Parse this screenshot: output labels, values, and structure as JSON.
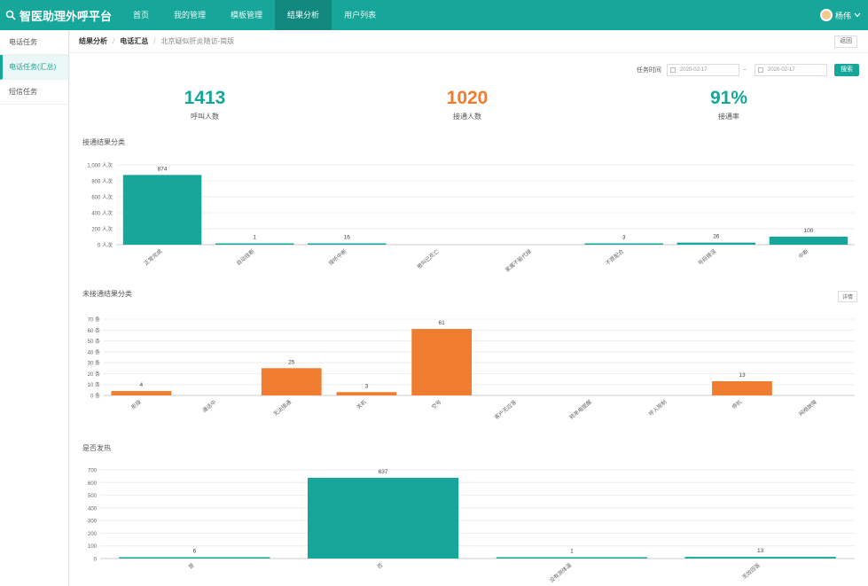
{
  "header": {
    "brand": "智医助理外呼平台",
    "nav": [
      "首页",
      "我的管理",
      "模板管理",
      "结果分析",
      "用户列表"
    ],
    "active_nav": 3,
    "user": "杨伟"
  },
  "sidebar": {
    "items": [
      "电话任务",
      "电话任务(汇总)",
      "短信任务"
    ],
    "active": 1
  },
  "breadcrumb": {
    "items": [
      "结果分析",
      "电话汇总",
      "北京疑似肝炎随访-简版"
    ],
    "back_label": "返回"
  },
  "filter": {
    "label": "任务时间",
    "start": "2020-02-17",
    "end": "2020-02-17",
    "query_label": "搜索"
  },
  "stats": [
    {
      "value": "1413",
      "label": "呼叫人数",
      "color": "#16a69a"
    },
    {
      "value": "1020",
      "label": "接通人数",
      "color": "#f07c2f"
    },
    {
      "value": "91%",
      "label": "接通率",
      "color": "#16a69a"
    }
  ],
  "sections": {
    "chart1_title": "接通结果分类",
    "chart2_title": "未接通结果分类",
    "chart3_title": "是否发热",
    "detail_label": "详情"
  },
  "chart_data": [
    {
      "type": "bar",
      "categories": [
        "正常完成",
        "自动挂断",
        "接听中断",
        "被叫已死亡",
        "家属不能代接",
        "不愿配合",
        "号码错误",
        "中断"
      ],
      "values": [
        874,
        1,
        16,
        0,
        0,
        3,
        26,
        100
      ],
      "ylim": [
        0,
        1000
      ],
      "yticks": [
        "0 人次",
        "200 人次",
        "400 人次",
        "600 人次",
        "800 人次",
        "1,000 人次"
      ],
      "color": "#16a69a"
    },
    {
      "type": "bar",
      "categories": [
        "拒接",
        "通话中",
        "无法接通",
        "关机",
        "空号",
        "客户无应答",
        "转来电提醒",
        "呼入限制",
        "停机",
        "网络故障"
      ],
      "values": [
        4,
        0,
        25,
        3,
        61,
        0,
        0,
        0,
        13,
        0
      ],
      "ylim": [
        0,
        70
      ],
      "yticks": [
        "0 条",
        "10 条",
        "20 条",
        "30 条",
        "40 条",
        "50 条",
        "60 条",
        "70 条"
      ],
      "color": "#f07c2f"
    },
    {
      "type": "bar",
      "categories": [
        "是",
        "否",
        "没有测体温",
        "无效回答"
      ],
      "values": [
        6,
        637,
        1,
        13
      ],
      "ylim": [
        0,
        700
      ],
      "yticks": [
        "0",
        "100",
        "200",
        "300",
        "400",
        "500",
        "600",
        "700"
      ],
      "color": "#16a69a"
    }
  ]
}
